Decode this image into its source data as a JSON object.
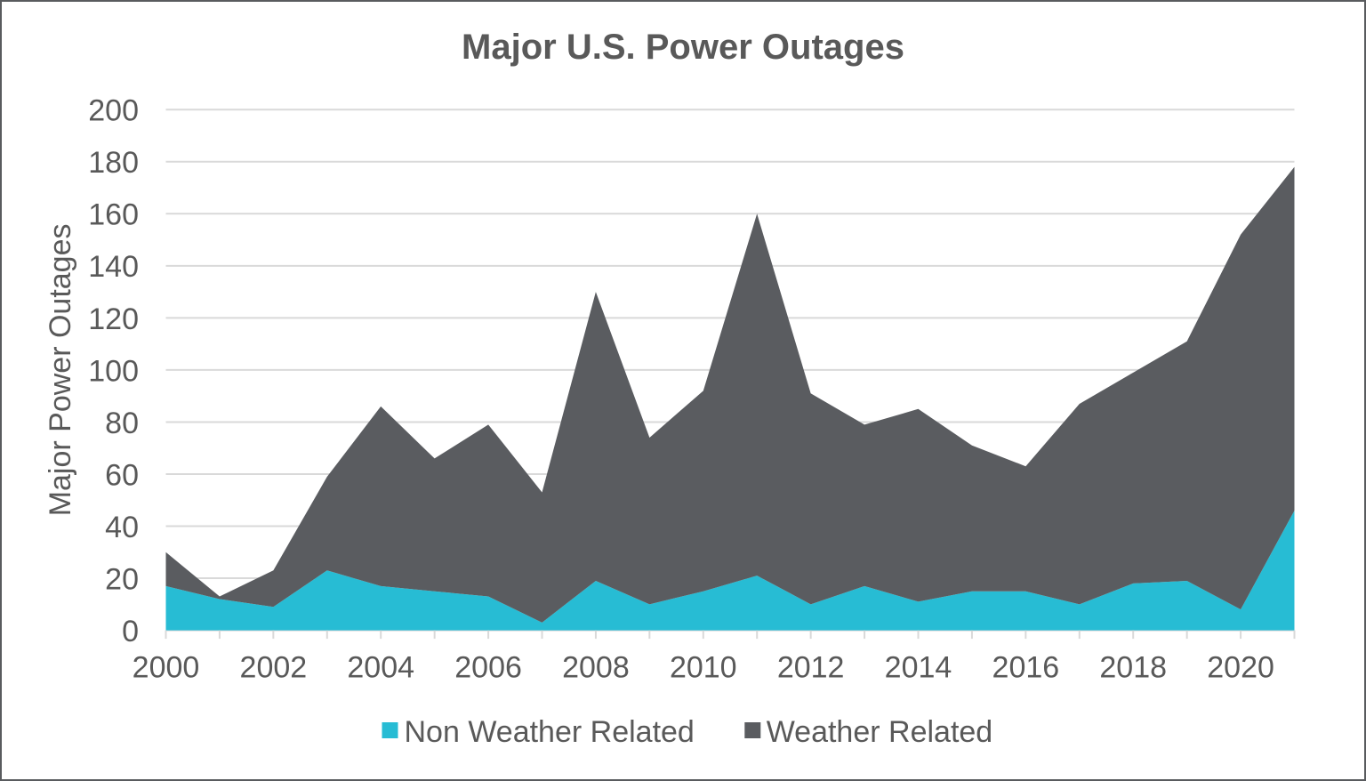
{
  "chart_data": {
    "type": "area",
    "stacked": true,
    "title": "Major U.S. Power Outages",
    "xlabel": "",
    "ylabel": "Major Power Outages",
    "x": [
      2000,
      2001,
      2002,
      2003,
      2004,
      2005,
      2006,
      2007,
      2008,
      2009,
      2010,
      2011,
      2012,
      2013,
      2014,
      2015,
      2016,
      2017,
      2018,
      2019,
      2020,
      2021
    ],
    "series": [
      {
        "name": "Non Weather Related",
        "color": "#27bcd4",
        "values": [
          17,
          12,
          9,
          23,
          17,
          15,
          13,
          3,
          19,
          10,
          15,
          21,
          10,
          17,
          11,
          15,
          15,
          10,
          18,
          19,
          8,
          46
        ]
      },
      {
        "name": "Weather Related",
        "color": "#5a5c60",
        "values": [
          13,
          1,
          14,
          36,
          69,
          51,
          66,
          50,
          111,
          64,
          77,
          139,
          81,
          62,
          74,
          56,
          48,
          77,
          81,
          92,
          144,
          132
        ]
      }
    ],
    "ylim": [
      0,
      200
    ],
    "ytick_step": 20,
    "xtick_label_step": 2,
    "grid": true,
    "legend_position": "bottom"
  },
  "style": {
    "background_color": "#ffffff",
    "border_color": "#595b5e",
    "text_color": "#595959",
    "gridline_color": "#d9d9d9",
    "axis_line_color": "#d9d9d9",
    "series_colors": [
      "#27bcd4",
      "#5a5c60"
    ]
  }
}
